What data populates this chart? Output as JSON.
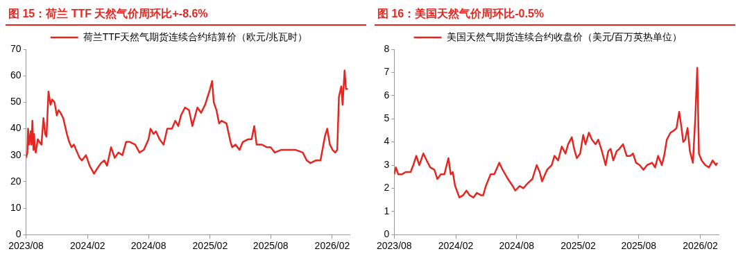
{
  "chart_data": [
    {
      "type": "line",
      "title": "图 15：荷兰 TTF 天然气价周环比+-8.6%",
      "legend": "top",
      "grid": false,
      "marker": "none",
      "line_style": "solid",
      "xlim": [
        "2023-08-01",
        "2026-03-25"
      ],
      "xticks": [
        {
          "value": "2023-08-01",
          "label": "2023/08"
        },
        {
          "value": "2024-02-01",
          "label": "2024/02"
        },
        {
          "value": "2024-08-01",
          "label": "2024/08"
        },
        {
          "value": "2025-02-01",
          "label": "2025/02"
        },
        {
          "value": "2025-08-01",
          "label": "2025/08"
        },
        {
          "value": "2026-02-01",
          "label": "2026/02"
        }
      ],
      "ylim": [
        0,
        70
      ],
      "yticks": [
        0,
        10,
        20,
        30,
        40,
        50,
        60,
        70
      ],
      "series": [
        {
          "name": "荷兰TTF天然气期货连续合约结算价（欧元/兆瓦时）",
          "color": "#e52620",
          "x": [
            "2023-08-01",
            "2023-08-05",
            "2023-08-07",
            "2023-08-10",
            "2023-08-15",
            "2023-08-17",
            "2023-08-20",
            "2023-08-23",
            "2023-08-25",
            "2023-08-27",
            "2023-08-30",
            "2023-09-05",
            "2023-09-10",
            "2023-09-16",
            "2023-09-22",
            "2023-09-27",
            "2023-10-01",
            "2023-10-07",
            "2023-10-13",
            "2023-10-18",
            "2023-10-25",
            "2023-11-01",
            "2023-11-06",
            "2023-11-12",
            "2023-11-20",
            "2023-12-01",
            "2023-12-08",
            "2023-12-15",
            "2023-12-22",
            "2024-01-01",
            "2024-01-08",
            "2024-01-15",
            "2024-01-27",
            "2024-02-07",
            "2024-02-20",
            "2024-03-01",
            "2024-03-12",
            "2024-03-22",
            "2024-03-30",
            "2024-04-11",
            "2024-04-22",
            "2024-05-03",
            "2024-05-15",
            "2024-05-26",
            "2024-06-06",
            "2024-06-22",
            "2024-07-05",
            "2024-07-18",
            "2024-08-01",
            "2024-08-07",
            "2024-08-16",
            "2024-08-23",
            "2024-09-03",
            "2024-09-15",
            "2024-09-26",
            "2024-10-10",
            "2024-10-20",
            "2024-10-29",
            "2024-11-06",
            "2024-11-18",
            "2024-11-30",
            "2024-12-10",
            "2024-12-25",
            "2025-01-05",
            "2025-01-17",
            "2025-02-01",
            "2025-02-07",
            "2025-02-12",
            "2025-02-20",
            "2025-02-28",
            "2025-03-07",
            "2025-03-22",
            "2025-04-03",
            "2025-04-08",
            "2025-04-18",
            "2025-04-30",
            "2025-05-10",
            "2025-05-25",
            "2025-06-05",
            "2025-06-13",
            "2025-06-20",
            "2025-07-06",
            "2025-07-20",
            "2025-08-01",
            "2025-08-13",
            "2025-09-01",
            "2025-09-23",
            "2025-10-15",
            "2025-11-05",
            "2025-11-17",
            "2025-11-28",
            "2025-12-13",
            "2025-12-28",
            "2026-01-10",
            "2026-01-17",
            "2026-01-25",
            "2026-02-02",
            "2026-02-10",
            "2026-02-16",
            "2026-02-21",
            "2026-02-28",
            "2026-03-04",
            "2026-03-10",
            "2026-03-14",
            "2026-03-20"
          ],
          "values": [
            29,
            31,
            40,
            34,
            39,
            34,
            43,
            32,
            38,
            33,
            31,
            36,
            35,
            34,
            44,
            38,
            37,
            54,
            49,
            51,
            50,
            45,
            47,
            46,
            44,
            38,
            35,
            33,
            34,
            31,
            29,
            28,
            30,
            26,
            23,
            25,
            27,
            28,
            26,
            33,
            29,
            31,
            30,
            35,
            35,
            34,
            31,
            32,
            36,
            40,
            38,
            39,
            36,
            34,
            40,
            40,
            43,
            41,
            45,
            48,
            47,
            41,
            48,
            46,
            49,
            55,
            58,
            50,
            47,
            42,
            43,
            42,
            35,
            33,
            34,
            32,
            35,
            36,
            36,
            41,
            34,
            34,
            33,
            33,
            31,
            32,
            32,
            32,
            31,
            28,
            27,
            28,
            28,
            37,
            40,
            34,
            32,
            31,
            32,
            52,
            56,
            49,
            62,
            55,
            55
          ]
        }
      ]
    },
    {
      "type": "line",
      "title": "图 16：美国天然气价周环比-0.5%",
      "legend": "top",
      "grid": false,
      "marker": "none",
      "line_style": "solid",
      "xlim": [
        "2023-08-01",
        "2026-03-28"
      ],
      "xticks": [
        {
          "value": "2023-08-01",
          "label": "2023/08"
        },
        {
          "value": "2024-02-01",
          "label": "2024/02"
        },
        {
          "value": "2024-08-01",
          "label": "2024/08"
        },
        {
          "value": "2025-02-01",
          "label": "2025/02"
        },
        {
          "value": "2025-08-01",
          "label": "2025/08"
        },
        {
          "value": "2026-02-01",
          "label": "2026/02"
        }
      ],
      "ylim": [
        0,
        8
      ],
      "yticks": [
        0,
        1,
        2,
        3,
        4,
        5,
        6,
        7,
        8
      ],
      "series": [
        {
          "name": "美国天然气期货连续合约收盘价（美元/百万英热单位）",
          "color": "#e52620",
          "x": [
            "2023-08-01",
            "2023-08-06",
            "2023-08-13",
            "2023-08-24",
            "2023-09-04",
            "2023-09-19",
            "2023-09-27",
            "2023-10-06",
            "2023-10-15",
            "2023-10-27",
            "2023-11-06",
            "2023-11-17",
            "2023-11-29",
            "2023-12-08",
            "2023-12-18",
            "2023-12-29",
            "2024-01-10",
            "2024-01-17",
            "2024-01-23",
            "2024-01-30",
            "2024-02-12",
            "2024-02-23",
            "2024-03-04",
            "2024-03-13",
            "2024-03-25",
            "2024-04-04",
            "2024-04-16",
            "2024-04-23",
            "2024-05-01",
            "2024-05-15",
            "2024-05-26",
            "2024-06-10",
            "2024-06-20",
            "2024-07-06",
            "2024-07-20",
            "2024-07-28",
            "2024-08-10",
            "2024-08-21",
            "2024-09-02",
            "2024-09-17",
            "2024-09-30",
            "2024-10-09",
            "2024-10-16",
            "2024-10-31",
            "2024-11-14",
            "2024-11-22",
            "2024-12-03",
            "2024-12-14",
            "2024-12-25",
            "2025-01-02",
            "2025-01-13",
            "2025-01-20",
            "2025-01-28",
            "2025-02-07",
            "2025-02-16",
            "2025-02-23",
            "2025-03-05",
            "2025-03-14",
            "2025-03-25",
            "2025-04-02",
            "2025-04-13",
            "2025-04-24",
            "2025-05-02",
            "2025-05-09",
            "2025-05-17",
            "2025-05-27",
            "2025-06-04",
            "2025-06-15",
            "2025-06-26",
            "2025-07-07",
            "2025-07-15",
            "2025-07-24",
            "2025-08-04",
            "2025-08-15",
            "2025-08-26",
            "2025-09-10",
            "2025-09-19",
            "2025-09-28",
            "2025-10-09",
            "2025-10-16",
            "2025-10-24",
            "2025-11-04",
            "2025-11-15",
            "2025-11-22",
            "2025-11-30",
            "2025-12-07",
            "2025-12-12",
            "2025-12-18",
            "2025-12-25",
            "2026-01-01",
            "2026-01-10",
            "2026-01-17",
            "2026-01-23",
            "2026-01-28",
            "2026-02-05",
            "2026-02-16",
            "2026-02-27",
            "2026-03-10",
            "2026-03-20",
            "2026-03-24"
          ],
          "values": [
            2.6,
            2.9,
            2.6,
            2.6,
            2.7,
            2.7,
            3.0,
            3.4,
            3.0,
            3.5,
            3.2,
            2.9,
            2.8,
            2.4,
            2.6,
            2.6,
            3.3,
            2.6,
            2.7,
            2.1,
            1.6,
            1.7,
            1.9,
            1.7,
            1.6,
            1.8,
            1.7,
            1.7,
            2.1,
            2.6,
            2.6,
            3.1,
            2.8,
            2.4,
            2.1,
            1.9,
            2.1,
            2.0,
            2.2,
            2.4,
            3.0,
            2.7,
            2.3,
            2.8,
            3.0,
            3.4,
            3.2,
            3.8,
            3.5,
            3.9,
            4.2,
            3.7,
            3.3,
            3.5,
            4.3,
            3.9,
            4.4,
            4.1,
            3.9,
            4.1,
            3.6,
            3.0,
            3.6,
            3.7,
            3.2,
            3.6,
            3.7,
            3.9,
            3.4,
            3.4,
            3.5,
            3.1,
            3.0,
            2.8,
            3.0,
            3.1,
            2.9,
            3.4,
            3.0,
            3.4,
            4.1,
            4.4,
            4.5,
            4.6,
            5.3,
            4.6,
            4.0,
            4.1,
            4.6,
            3.6,
            3.1,
            5.0,
            7.2,
            3.5,
            3.2,
            3.0,
            2.9,
            3.2,
            3.0,
            3.1
          ]
        }
      ]
    }
  ]
}
